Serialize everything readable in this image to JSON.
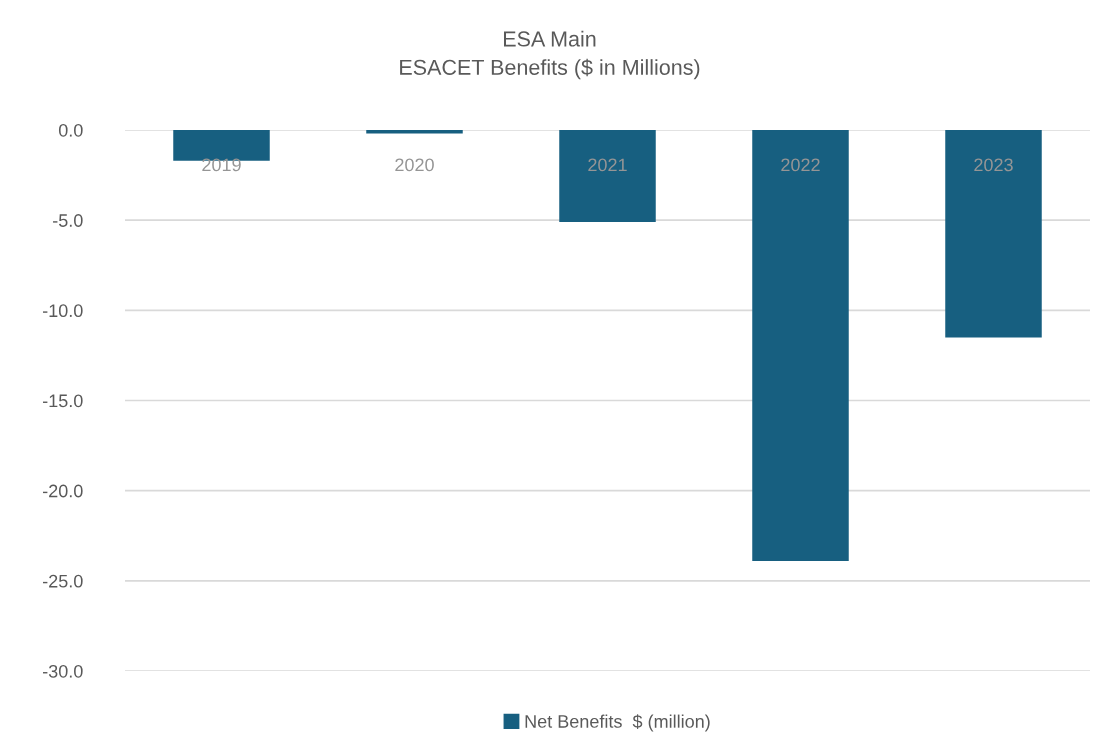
{
  "chart_data": {
    "type": "bar",
    "title": "ESA Main\nESACET Benefits ($ in Millions)",
    "categories": [
      "2019",
      "2020",
      "2021",
      "2022",
      "2023"
    ],
    "series": [
      {
        "name": "Net Benefits  $ (million)",
        "color": "#175f80",
        "values": [
          -1.7,
          -0.2,
          -5.1,
          -23.9,
          -11.5
        ]
      }
    ],
    "ylim": [
      -30,
      0
    ],
    "yticks": [
      {
        "value": 0,
        "label": "0.0"
      },
      {
        "value": -5,
        "label": "-5.0"
      },
      {
        "value": -10,
        "label": "-10.0"
      },
      {
        "value": -15,
        "label": "-15.0"
      },
      {
        "value": -20,
        "label": "-20.0"
      },
      {
        "value": -25,
        "label": "-25.0"
      },
      {
        "value": -30,
        "label": "-30.0"
      }
    ],
    "grid": "y",
    "legend": "bottom"
  }
}
